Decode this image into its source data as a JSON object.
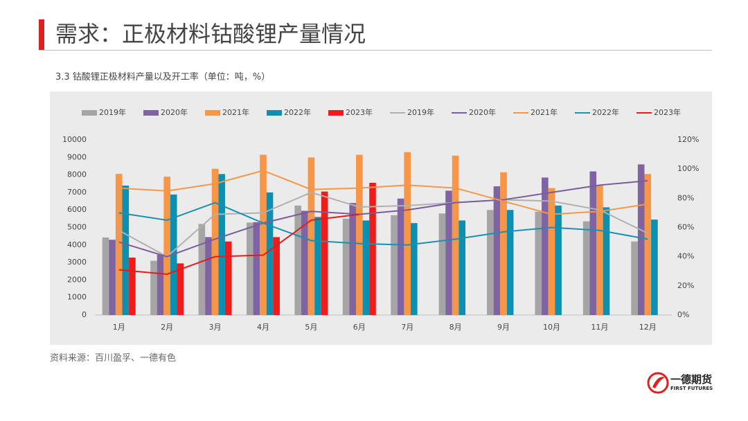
{
  "header": {
    "title": "需求：正极材料钴酸锂产量情况"
  },
  "footer": {
    "source": "资料来源：百川盈孚、一德有色",
    "logo_cn": "一德期货",
    "logo_en": "FIRST FUTURES"
  },
  "chart_data": {
    "type": "bar",
    "title": "3.3 钴酸锂正极材料产量以及开工率（单位：吨，%）",
    "categories": [
      "1月",
      "2月",
      "3月",
      "4月",
      "5月",
      "6月",
      "7月",
      "8月",
      "9月",
      "10月",
      "11月",
      "12月"
    ],
    "ylim": [
      0,
      10000
    ],
    "yticks": [
      0,
      1000,
      2000,
      3000,
      4000,
      5000,
      6000,
      7000,
      8000,
      9000,
      10000
    ],
    "y2lim": [
      0,
      120
    ],
    "y2ticks": [
      {
        "value": 0,
        "label": "0%"
      },
      {
        "value": 20,
        "label": "20%"
      },
      {
        "value": 40,
        "label": "40%"
      },
      {
        "value": 60,
        "label": "60%"
      },
      {
        "value": 80,
        "label": "80%"
      },
      {
        "value": 100,
        "label": "100%"
      },
      {
        "value": 120,
        "label": "120%"
      }
    ],
    "grid": false,
    "legend": "top",
    "series": [
      {
        "name": "2019年",
        "type": "bar",
        "color": "#a5a5a5",
        "values": [
          4430,
          3100,
          5200,
          5280,
          6250,
          5500,
          5700,
          5800,
          6000,
          5900,
          5350,
          4200
        ]
      },
      {
        "name": "2020年",
        "type": "bar",
        "color": "#8064a2",
        "values": [
          4300,
          3450,
          4450,
          5300,
          5950,
          6400,
          6650,
          7100,
          7350,
          7850,
          8200,
          8600
        ]
      },
      {
        "name": "2021年",
        "type": "bar",
        "color": "#f79646",
        "values": [
          8060,
          7900,
          8350,
          9150,
          9000,
          9150,
          9300,
          9100,
          8150,
          7250,
          7400,
          8050
        ]
      },
      {
        "name": "2022年",
        "type": "bar",
        "color": "#0d8fb0",
        "values": [
          7390,
          6880,
          8050,
          7000,
          5600,
          5400,
          5250,
          5400,
          6000,
          6250,
          6150,
          5450
        ]
      },
      {
        "name": "2023年",
        "type": "bar",
        "color": "#ee1c1c",
        "values": [
          3280,
          2950,
          4200,
          4450,
          7050,
          7550,
          null,
          null,
          null,
          null,
          null,
          null
        ]
      },
      {
        "name": "2019年",
        "type": "line",
        "axis": "y2",
        "color": "#b0b0b0",
        "values": [
          58,
          40,
          69,
          70,
          84,
          74,
          75,
          77,
          79,
          78,
          72,
          56
        ]
      },
      {
        "name": "2020年",
        "type": "line",
        "axis": "y2",
        "color": "#7a5c9e",
        "values": [
          50,
          40,
          52,
          63,
          71,
          69,
          72,
          77,
          79,
          84,
          89,
          92
        ]
      },
      {
        "name": "2021年",
        "type": "line",
        "axis": "y2",
        "color": "#f79646",
        "values": [
          87,
          85,
          90,
          99,
          86,
          87,
          89,
          87,
          78,
          69,
          71,
          76
        ]
      },
      {
        "name": "2022年",
        "type": "line",
        "axis": "y2",
        "color": "#1a8fb0",
        "values": [
          70,
          65,
          77,
          63,
          51,
          49,
          48,
          52,
          57,
          60,
          58,
          52
        ]
      },
      {
        "name": "2023年",
        "type": "line",
        "axis": "y2",
        "color": "#e01c1c",
        "values": [
          31,
          28,
          40,
          41,
          65,
          69,
          null,
          null,
          null,
          null,
          null,
          null
        ]
      }
    ]
  }
}
